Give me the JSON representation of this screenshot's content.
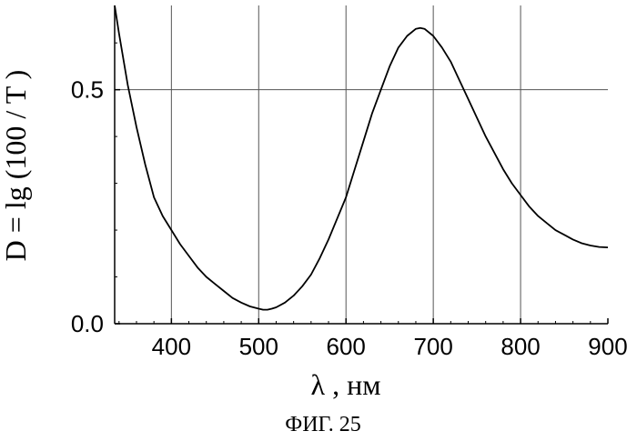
{
  "chart_data": {
    "type": "line",
    "title": "",
    "xlabel": "λ , нм",
    "ylabel": "D = lg (100 / T )",
    "xlim": [
      335,
      900
    ],
    "ylim": [
      0.0,
      0.68
    ],
    "x_ticks": [
      "400",
      "500",
      "600",
      "700",
      "800",
      "900"
    ],
    "y_ticks": [
      "0.0",
      "0.5"
    ],
    "grid": true,
    "legend": "none",
    "caption": "ФИГ. 25",
    "series": [
      {
        "x": [
          335,
          340,
          350,
          360,
          370,
          380,
          390,
          400,
          410,
          420,
          430,
          440,
          450,
          460,
          470,
          480,
          490,
          500,
          505,
          510,
          515,
          520,
          530,
          540,
          550,
          560,
          570,
          580,
          590,
          600,
          610,
          620,
          630,
          640,
          650,
          660,
          670,
          680,
          685,
          690,
          700,
          710,
          720,
          730,
          740,
          750,
          760,
          770,
          780,
          790,
          800,
          810,
          820,
          830,
          840,
          850,
          860,
          870,
          880,
          890,
          900
        ],
        "y": [
          0.68,
          0.62,
          0.51,
          0.42,
          0.34,
          0.27,
          0.23,
          0.2,
          0.17,
          0.145,
          0.12,
          0.1,
          0.085,
          0.07,
          0.055,
          0.045,
          0.037,
          0.032,
          0.03,
          0.03,
          0.032,
          0.035,
          0.045,
          0.06,
          0.08,
          0.105,
          0.14,
          0.18,
          0.225,
          0.27,
          0.33,
          0.39,
          0.45,
          0.5,
          0.55,
          0.59,
          0.615,
          0.63,
          0.632,
          0.63,
          0.615,
          0.59,
          0.56,
          0.52,
          0.48,
          0.44,
          0.4,
          0.365,
          0.33,
          0.3,
          0.275,
          0.25,
          0.23,
          0.215,
          0.2,
          0.19,
          0.18,
          0.172,
          0.167,
          0.164,
          0.163
        ]
      }
    ]
  }
}
